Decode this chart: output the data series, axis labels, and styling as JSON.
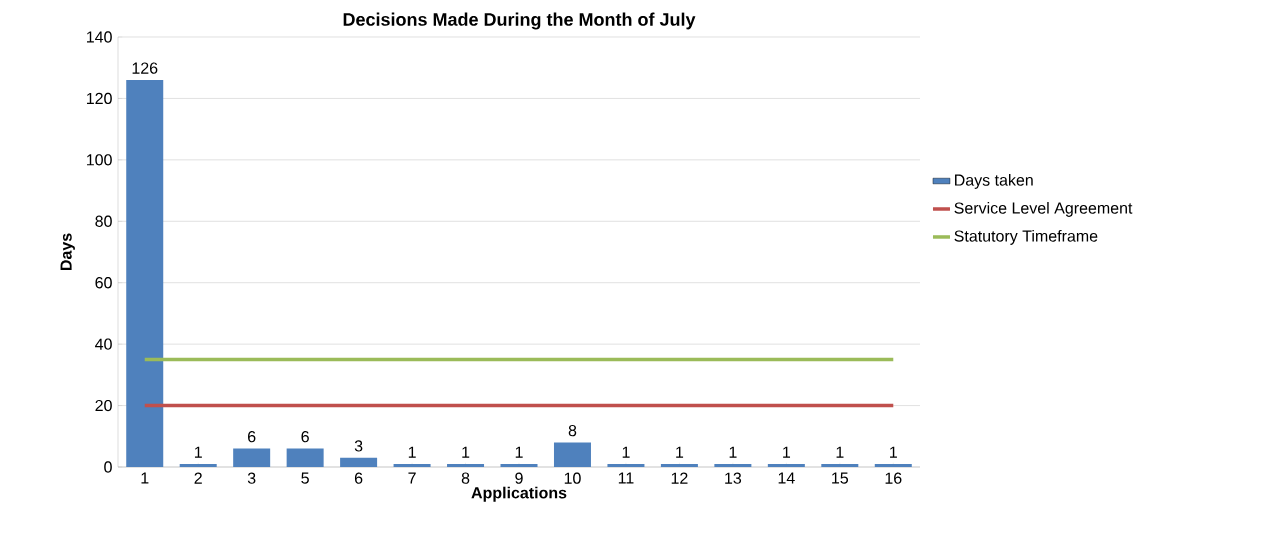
{
  "chart_data": {
    "type": "bar",
    "title": "Decisions Made During the Month of July",
    "xlabel": "Applications",
    "ylabel": "Days",
    "categories": [
      "1",
      "2",
      "3",
      "5",
      "6",
      "7",
      "8",
      "9",
      "10",
      "11",
      "12",
      "13",
      "14",
      "15",
      "16"
    ],
    "series": [
      {
        "name": "Days taken",
        "type": "bar",
        "color": "#4f81bd",
        "values": [
          126,
          1,
          6,
          6,
          3,
          1,
          1,
          1,
          8,
          1,
          1,
          1,
          1,
          1,
          1
        ],
        "value_labels": [
          "126",
          "1",
          "6",
          "6",
          "3",
          "1",
          "1",
          "1",
          "8",
          "1",
          "1",
          "1",
          "1",
          "1",
          "1"
        ]
      },
      {
        "name": "Service Level Agreement",
        "type": "line",
        "color": "#c0504d",
        "values": [
          20,
          20,
          20,
          20,
          20,
          20,
          20,
          20,
          20,
          20,
          20,
          20,
          20,
          20,
          20
        ]
      },
      {
        "name": "Statutory Timeframe",
        "type": "line",
        "color": "#9bbb59",
        "values": [
          35,
          35,
          35,
          35,
          35,
          35,
          35,
          35,
          35,
          35,
          35,
          35,
          35,
          35,
          35
        ]
      }
    ],
    "ylim": [
      0,
      140
    ],
    "yticks": [
      0,
      20,
      40,
      60,
      80,
      100,
      120,
      140
    ],
    "grid": "y",
    "legend": "right"
  }
}
